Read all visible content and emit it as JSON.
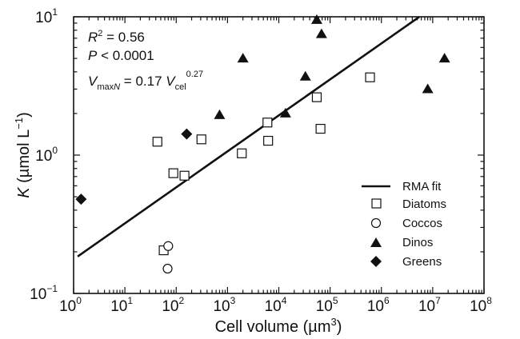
{
  "chart_data": {
    "type": "scatter",
    "x_scale": "log",
    "y_scale": "log",
    "xlim": [
      1,
      100000000
    ],
    "ylim": [
      0.1,
      10
    ],
    "grid": false,
    "legend_position": "bottom-right",
    "xlabel": {
      "main": "Cell volume (µm",
      "sup": "3",
      "end": ")"
    },
    "ylabel": {
      "italic": "K",
      "main": " (µmol L",
      "sup": "−1",
      "end": ")"
    },
    "x_ticks": [
      {
        "base": "10",
        "exp": "0",
        "value": 1
      },
      {
        "base": "10",
        "exp": "1",
        "value": 10
      },
      {
        "base": "10",
        "exp": "2",
        "value": 100
      },
      {
        "base": "10",
        "exp": "3",
        "value": 1000
      },
      {
        "base": "10",
        "exp": "4",
        "value": 10000
      },
      {
        "base": "10",
        "exp": "5",
        "value": 100000
      },
      {
        "base": "10",
        "exp": "6",
        "value": 1000000
      },
      {
        "base": "10",
        "exp": "7",
        "value": 10000000
      },
      {
        "base": "10",
        "exp": "8",
        "value": 100000000
      }
    ],
    "y_ticks": [
      {
        "base": "10",
        "exp": "−1",
        "value": 0.1
      },
      {
        "base": "10",
        "exp": "0",
        "value": 1
      },
      {
        "base": "10",
        "exp": "1",
        "value": 10
      }
    ],
    "annotations": {
      "r2": {
        "italic": "R",
        "sup": "2",
        "rest": " = 0.56"
      },
      "p": {
        "italic": "P",
        "rest": " < 0.0001"
      },
      "equation": {
        "v1": "V",
        "sub1": "max",
        "sub1_italic": "N",
        "mid": " = 0.17 ",
        "v2": "V",
        "sub2": "cel",
        "sup2": "0.27"
      }
    },
    "fit": {
      "name": "RMA fit",
      "x": [
        1.2,
        5500000
      ],
      "y": [
        0.185,
        10
      ]
    },
    "series": [
      {
        "name": "Diatoms",
        "marker": "open-square",
        "points": [
          {
            "x": 43,
            "y": 1.25
          },
          {
            "x": 88,
            "y": 0.74
          },
          {
            "x": 145,
            "y": 0.71
          },
          {
            "x": 310,
            "y": 1.3
          },
          {
            "x": 1900,
            "y": 1.03
          },
          {
            "x": 6000,
            "y": 1.72
          },
          {
            "x": 6200,
            "y": 1.27
          },
          {
            "x": 55000,
            "y": 2.62
          },
          {
            "x": 65000,
            "y": 1.55
          },
          {
            "x": 600000,
            "y": 3.65
          },
          {
            "x": 57,
            "y": 0.205
          }
        ]
      },
      {
        "name": "Coccos",
        "marker": "open-circle",
        "points": [
          {
            "x": 70,
            "y": 0.22
          },
          {
            "x": 68,
            "y": 0.151
          }
        ]
      },
      {
        "name": "Dinos",
        "marker": "filled-triangle",
        "points": [
          {
            "x": 2000,
            "y": 5.0
          },
          {
            "x": 700,
            "y": 1.95
          },
          {
            "x": 13500,
            "y": 2.0
          },
          {
            "x": 33000,
            "y": 3.7
          },
          {
            "x": 55000,
            "y": 9.5
          },
          {
            "x": 68000,
            "y": 7.5
          },
          {
            "x": 8000000,
            "y": 3.0
          },
          {
            "x": 17000000,
            "y": 5.0
          }
        ]
      },
      {
        "name": "Greens",
        "marker": "filled-diamond",
        "points": [
          {
            "x": 1.4,
            "y": 0.48
          },
          {
            "x": 160,
            "y": 1.42
          }
        ]
      }
    ]
  }
}
